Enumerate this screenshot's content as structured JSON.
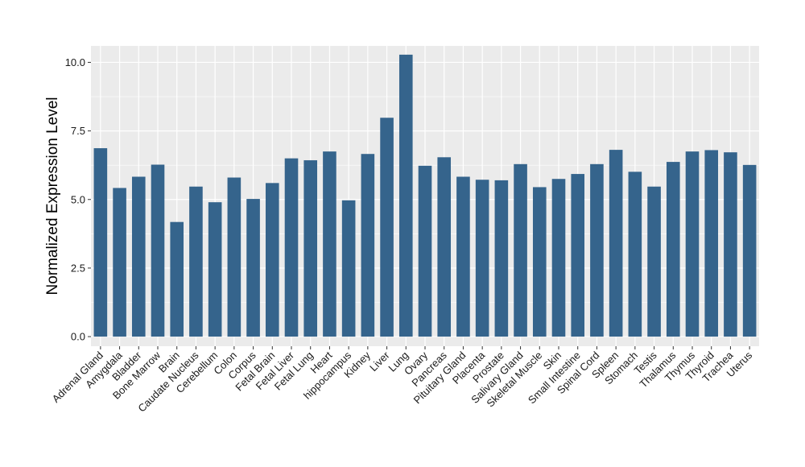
{
  "chart_data": {
    "type": "bar",
    "title": "",
    "xlabel": "",
    "ylabel": "Normalized Expression Level",
    "ylim": [
      -0.35,
      10.6
    ],
    "yticks": [
      0.0,
      2.5,
      5.0,
      7.5,
      10.0
    ],
    "ytick_labels": [
      "0.0",
      "2.5",
      "5.0",
      "7.5",
      "10.0"
    ],
    "grid": true,
    "legend": "none",
    "bar_color": "#35648C",
    "panel_color": "#EBEBEB",
    "grid_color": "#FFFFFF",
    "categories": [
      "Adrenal Gland",
      "Amygdala",
      "Bladder",
      "Bone Marrow",
      "Brain",
      "Caudate Nucleus",
      "Cerebellum",
      "Colon",
      "Corpus",
      "Fetal Brain",
      "Fetal Liver",
      "Fetal Lung",
      "Heart",
      "hippocampus",
      "Kidney",
      "Liver",
      "Lung",
      "Ovary",
      "Pancreas",
      "Pituitary Gland",
      "Placenta",
      "Prostate",
      "Salivary Gland",
      "Skeletal Muscle",
      "Skin",
      "Small Intestine",
      "Spinal Cord",
      "Spleen",
      "Stomach",
      "Testis",
      "Thalamus",
      "Thymus",
      "Thyroid",
      "Trachea",
      "Uterus"
    ],
    "values": [
      6.87,
      5.42,
      5.83,
      6.27,
      4.18,
      5.47,
      4.9,
      5.8,
      5.02,
      5.6,
      6.5,
      6.43,
      6.75,
      4.97,
      6.66,
      7.98,
      10.28,
      6.23,
      6.54,
      5.83,
      5.72,
      5.7,
      6.29,
      5.45,
      5.75,
      5.93,
      6.29,
      6.81,
      6.01,
      5.47,
      6.37,
      6.75,
      6.8,
      6.72,
      6.26
    ]
  }
}
